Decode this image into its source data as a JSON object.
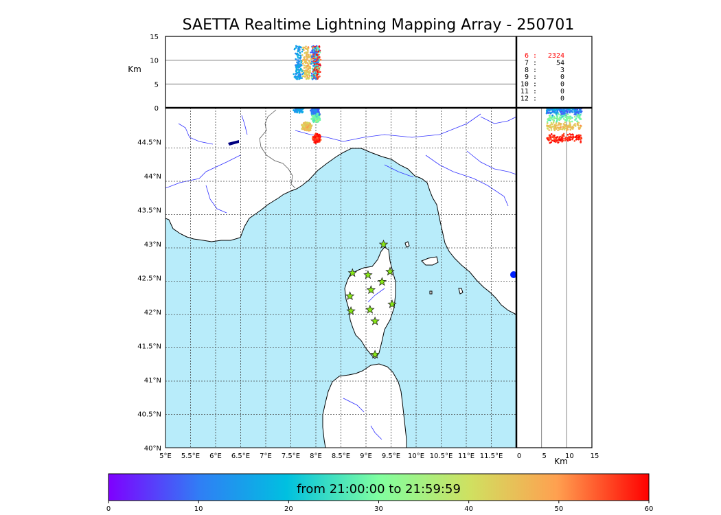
{
  "title": "SAETTA Realtime Lightning Mapping Array - 250701",
  "altitude_axis": {
    "label": "Km",
    "ticks": [
      "15",
      "10",
      "5",
      "0"
    ]
  },
  "side_axis": {
    "label": "Km",
    "ticks": [
      "0",
      "5",
      "10",
      "15"
    ]
  },
  "map": {
    "lon_ticks": [
      "5°E",
      "5.5°E",
      "6°E",
      "6.5°E",
      "7°E",
      "7.5°E",
      "8°E",
      "8.5°E",
      "9°E",
      "9.5°E",
      "10°E",
      "10.5°E",
      "11°E",
      "11.5°E"
    ],
    "lat_ticks": [
      "40°N",
      "40.5°N",
      "41°N",
      "41.5°N",
      "42°N",
      "42.5°N",
      "43°N",
      "43.5°N",
      "44°N",
      "44.5°N"
    ],
    "lon_range": [
      5.0,
      12.0
    ],
    "lat_range": [
      40.0,
      45.0
    ],
    "sea_color": "#b8ecfa",
    "river_color": "#3030ff",
    "station_color": "#88e817",
    "stations": [
      {
        "lon": 9.35,
        "lat": 42.99
      },
      {
        "lon": 8.73,
        "lat": 42.57
      },
      {
        "lon": 9.04,
        "lat": 42.54
      },
      {
        "lon": 9.48,
        "lat": 42.59
      },
      {
        "lon": 9.32,
        "lat": 42.44
      },
      {
        "lon": 9.1,
        "lat": 42.32
      },
      {
        "lon": 8.68,
        "lat": 42.23
      },
      {
        "lon": 9.52,
        "lat": 42.11
      },
      {
        "lon": 8.7,
        "lat": 42.01
      },
      {
        "lon": 9.08,
        "lat": 42.03
      },
      {
        "lon": 9.18,
        "lat": 41.86
      },
      {
        "lon": 9.18,
        "lat": 41.37
      }
    ]
  },
  "counts": [
    {
      "label": "6  :",
      "value": "2324",
      "color": "#ff0000"
    },
    {
      "label": "7  :",
      "value": "54",
      "color": "#000000"
    },
    {
      "label": "8  :",
      "value": "3",
      "color": "#000000"
    },
    {
      "label": "9  :",
      "value": "0",
      "color": "#000000"
    },
    {
      "label": "10  :",
      "value": "0",
      "color": "#000000"
    },
    {
      "label": "11  :",
      "value": "0",
      "color": "#000000"
    },
    {
      "label": "12  :",
      "value": "0",
      "color": "#000000"
    }
  ],
  "colorbar": {
    "label": "from 21:00:00 to 21:59:59",
    "ticks": [
      "0",
      "10",
      "20",
      "30",
      "40",
      "50",
      "60"
    ],
    "range": [
      0,
      60
    ],
    "colors": [
      "#7f00ff",
      "#2f7ff5",
      "#00c0e0",
      "#80ffa0",
      "#d0e060",
      "#ffa050",
      "#ff0000"
    ]
  },
  "chart_data": {
    "type": "scatter",
    "title": "SAETTA Realtime Lightning Mapping Array - 250701",
    "xlabel": "",
    "ylabel": "",
    "xlim": [
      5.0,
      12.0
    ],
    "ylim": [
      40.0,
      45.0
    ],
    "series": [
      {
        "name": "",
        "points": [
          {
            "lon": 7.65,
            "lat": 44.99,
            "t": 15
          },
          {
            "lon": 7.98,
            "lat": 44.95,
            "t": 10
          },
          {
            "lon": 8.0,
            "lat": 44.85,
            "t": 30
          },
          {
            "lon": 7.82,
            "lat": 44.72,
            "t": 45
          },
          {
            "lon": 8.02,
            "lat": 44.55,
            "t": 58
          }
        ]
      }
    ]
  }
}
